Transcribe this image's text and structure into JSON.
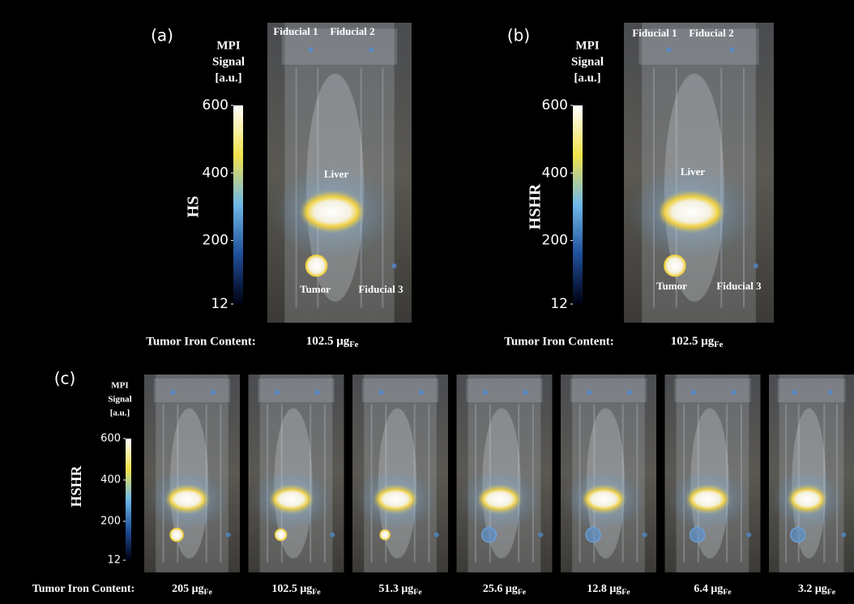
{
  "panels": [
    {
      "label": "(a)",
      "colorbar_title": [
        "MPI",
        "Signal",
        "[a.u.]"
      ],
      "colorbar_range": [
        12,
        600
      ],
      "colorbar_ticks": [
        600,
        400,
        200,
        12
      ],
      "row_label": "HS",
      "annotations": [
        "Fiducial 1",
        "Fiducial 2",
        "Liver",
        "Tumor",
        "Fiducial 3"
      ],
      "iron_caption": "Tumor Iron Content:",
      "iron": [
        {
          "label": "102.5 μg",
          "subscript": "Fe"
        }
      ]
    },
    {
      "label": "(b)",
      "colorbar_title": [
        "MPI",
        "Signal",
        "[a.u.]"
      ],
      "colorbar_range": [
        12,
        600
      ],
      "colorbar_ticks": [
        600,
        400,
        200,
        12
      ],
      "row_label": "HSHR",
      "annotations": [
        "Fiducial 1",
        "Fiducial 2",
        "Liver",
        "Tumor",
        "Fiducial 3"
      ],
      "iron_caption": "Tumor Iron Content:",
      "iron": [
        {
          "label": "102.5 μg",
          "subscript": "Fe"
        }
      ]
    },
    {
      "label": "(c)",
      "colorbar_title": [
        "MPI",
        "Signal",
        "[a.u.]"
      ],
      "colorbar_range": [
        12,
        600
      ],
      "colorbar_ticks": [
        600,
        400,
        200,
        12
      ],
      "row_label": "HSHR",
      "annotations": [],
      "iron_caption": "Tumor Iron Content:",
      "iron": [
        {
          "label": "205 μg",
          "subscript": "Fe"
        },
        {
          "label": "102.5 μg",
          "subscript": "Fe"
        },
        {
          "label": "51.3 μg",
          "subscript": "Fe"
        },
        {
          "label": "25.6 μg",
          "subscript": "Fe"
        },
        {
          "label": "12.8 μg",
          "subscript": "Fe"
        },
        {
          "label": "6.4 μg",
          "subscript": "Fe"
        },
        {
          "label": "3.2 μg",
          "subscript": "Fe"
        }
      ]
    }
  ]
}
